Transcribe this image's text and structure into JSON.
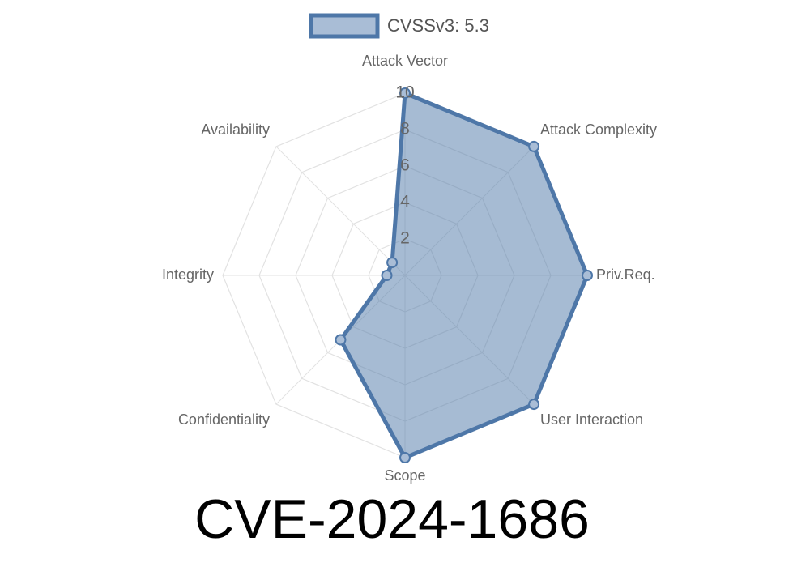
{
  "chart_data": {
    "type": "radar",
    "title": "CVE-2024-1686",
    "categories": [
      "Attack Vector",
      "Attack Complexity",
      "Priv.Req.",
      "User Interaction",
      "Scope",
      "Confidentiality",
      "Integrity",
      "Availability"
    ],
    "series": [
      {
        "name": "CVSSv3: 5.3",
        "color": "#4e77a8",
        "values": [
          10,
          10,
          10,
          10,
          10,
          5,
          1,
          1
        ]
      }
    ],
    "rlim": [
      0,
      10
    ],
    "rticks": [
      2,
      4,
      6,
      8,
      10
    ],
    "grid": true,
    "legend": "top"
  }
}
